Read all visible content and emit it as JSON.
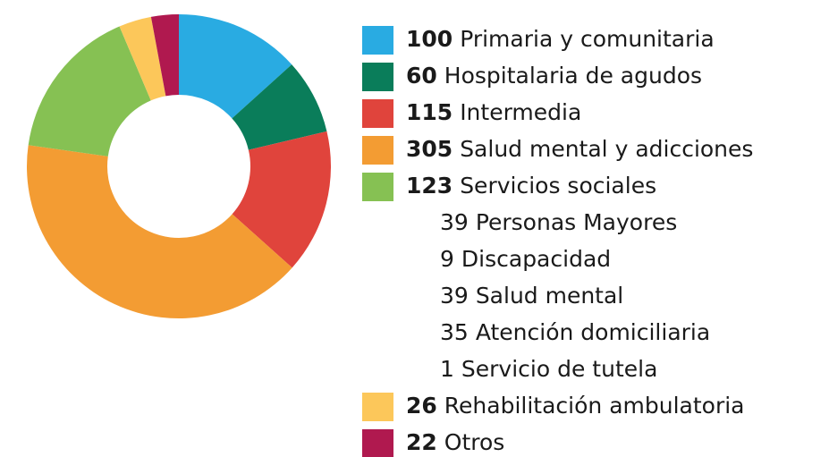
{
  "chart_data": {
    "type": "donut",
    "categories": [
      "Primaria y comunitaria",
      "Hospitalaria de agudos",
      "Intermedia",
      "Salud mental y adicciones",
      "Servicios sociales",
      "Rehabilitación ambulatoria",
      "Otros"
    ],
    "values": [
      100,
      60,
      115,
      305,
      123,
      26,
      22
    ],
    "colors": [
      "#29abe2",
      "#0a7d5a",
      "#e0443c",
      "#f39c33",
      "#86c153",
      "#fcc75a",
      "#b0194f"
    ],
    "breakdown": {
      "parent": 4,
      "categories": [
        "Personas Mayores",
        "Discapacidad",
        "Salud mental",
        "Atención domiciliaria",
        "Servicio de tutela"
      ],
      "values": [
        39,
        9,
        39,
        35,
        1
      ]
    }
  }
}
